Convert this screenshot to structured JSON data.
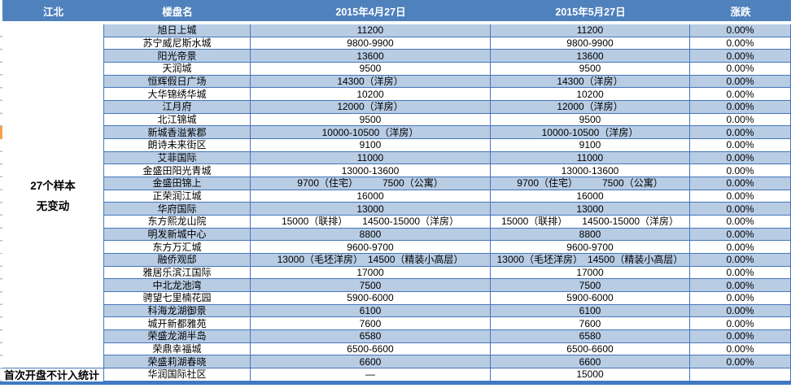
{
  "header": {
    "region": "江北",
    "property": "楼盘名",
    "date_apr": "2015年4月27日",
    "date_may": "2015年5月27日",
    "change": "涨跌"
  },
  "left_panel": {
    "summary_line1": "27个样本",
    "summary_line2": "无变动",
    "footnote": "首次开盘不计入统计"
  },
  "rows": [
    {
      "name": "旭日上城",
      "apr": "11200",
      "may": "11200",
      "change": "0.00%"
    },
    {
      "name": "苏宁威尼斯水城",
      "apr": "9800-9900",
      "may": "9800-9900",
      "change": "0.00%"
    },
    {
      "name": "阳光帝景",
      "apr": "13600",
      "may": "13600",
      "change": "0.00%"
    },
    {
      "name": "天润城",
      "apr": "9500",
      "may": "9500",
      "change": "0.00%"
    },
    {
      "name": "恒辉假日广场",
      "apr": "14300（洋房）",
      "may": "14300（洋房）",
      "change": "0.00%"
    },
    {
      "name": "大华锦绣华城",
      "apr": "10200",
      "may": "10200",
      "change": "0.00%"
    },
    {
      "name": "江月府",
      "apr": "12000（洋房）",
      "may": "12000（洋房）",
      "change": "0.00%"
    },
    {
      "name": "北江锦城",
      "apr": "9500",
      "may": "9500",
      "change": "0.00%"
    },
    {
      "name": "新城香溢紫郡",
      "apr": "10000-10500（洋房）",
      "may": "10000-10500（洋房）",
      "change": "0.00%"
    },
    {
      "name": "朗诗未来街区",
      "apr": "9100",
      "may": "9100",
      "change": "0.00%"
    },
    {
      "name": "艾菲国际",
      "apr": "11000",
      "may": "11000",
      "change": "0.00%"
    },
    {
      "name": "金盛田阳光青城",
      "apr": "13000-13600",
      "may": "13000-13600",
      "change": "0.00%"
    },
    {
      "name": "金盛田锦上",
      "apr": "9700（住宅）　　　7500（公寓）",
      "may": "9700（住宅）　　　7500（公寓）",
      "change": "0.00%"
    },
    {
      "name": "正荣润江城",
      "apr": "16000",
      "may": "16000",
      "change": "0.00%"
    },
    {
      "name": "华府国际",
      "apr": "13000",
      "may": "13000",
      "change": "0.00%"
    },
    {
      "name": "东方熙龙山院",
      "apr": "15000（联排）　　14500-15000（洋房）",
      "may": "15000（联排）　　14500-15000（洋房）",
      "change": "0.00%"
    },
    {
      "name": "明发新城中心",
      "apr": "8800",
      "may": "8800",
      "change": "0.00%"
    },
    {
      "name": "东方万汇城",
      "apr": "9600-9700",
      "may": "9600-9700",
      "change": "0.00%"
    },
    {
      "name": "融侨观邸",
      "apr": "13000（毛坯洋房）　14500（精装小高层）",
      "may": "13000（毛坯洋房）　14500（精装小高层）",
      "change": "0.00%"
    },
    {
      "name": "雅居乐滨江国际",
      "apr": "17000",
      "may": "17000",
      "change": "0.00%"
    },
    {
      "name": "中北龙池湾",
      "apr": "7500",
      "may": "7500",
      "change": "0.00%"
    },
    {
      "name": "骋望七里楠花园",
      "apr": "5900-6000",
      "may": "5900-6000",
      "change": "0.00%"
    },
    {
      "name": "科海龙湖御景",
      "apr": "6100",
      "may": "6100",
      "change": "0.00%"
    },
    {
      "name": "城开新都雅苑",
      "apr": "7600",
      "may": "7600",
      "change": "0.00%"
    },
    {
      "name": "荣盛龙湖半岛",
      "apr": "6580",
      "may": "6580",
      "change": "0.00%"
    },
    {
      "name": "荣鼎幸福城",
      "apr": "6500-6600",
      "may": "6500-6600",
      "change": "0.00%"
    },
    {
      "name": "荣盛莉湖春晓",
      "apr": "6600",
      "may": "6600",
      "change": "0.00%"
    },
    {
      "name": "华润国际社区",
      "apr": "—",
      "may": "15000",
      "change": ""
    }
  ],
  "colors": {
    "header_bg": "#4F81BD",
    "row_alt": "#B8CCE4",
    "row_white": "#FFFFFF",
    "grid_line": "#4576B9",
    "bottom_bar": "#3E79C4",
    "marker_orange": "#F6A14A"
  }
}
